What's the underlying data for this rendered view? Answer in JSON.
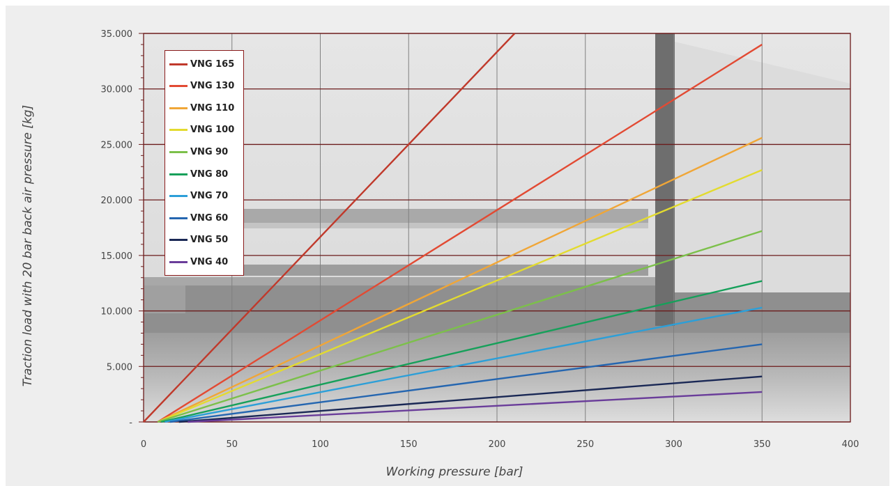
{
  "chart_data": {
    "type": "line",
    "title": "",
    "xlabel": "Working pressure [bar]",
    "ylabel": "Traction load with 20 bar back air pressure [kg]",
    "xlim": [
      0,
      400
    ],
    "ylim": [
      0,
      35000
    ],
    "x_ticks": [
      "0",
      "50",
      "100",
      "150",
      "200",
      "250",
      "300",
      "350",
      "400"
    ],
    "y_ticks": [
      "-",
      "5.000",
      "10.000",
      "15.000",
      "20.000",
      "25.000",
      "30.000",
      "35.000"
    ],
    "grid": true,
    "legend_position": "top-left",
    "background": "sailing catamaran photograph (greyscale)",
    "series": [
      {
        "name": "VNG 165",
        "color": "#c0392b",
        "x": [
          0,
          210
        ],
        "y": [
          0,
          35000
        ]
      },
      {
        "name": "VNG 130",
        "color": "#e24a33",
        "x": [
          8,
          350
        ],
        "y": [
          0,
          34000
        ]
      },
      {
        "name": "VNG 110",
        "color": "#f0a637",
        "x": [
          8,
          350
        ],
        "y": [
          0,
          25600
        ]
      },
      {
        "name": "VNG 100",
        "color": "#e3db2f",
        "x": [
          8,
          350
        ],
        "y": [
          0,
          22700
        ]
      },
      {
        "name": "VNG 90",
        "color": "#7cc04a",
        "x": [
          8,
          350
        ],
        "y": [
          0,
          17200
        ]
      },
      {
        "name": "VNG 80",
        "color": "#16a05a",
        "x": [
          10,
          350
        ],
        "y": [
          0,
          12700
        ]
      },
      {
        "name": "VNG 70",
        "color": "#2c9fd8",
        "x": [
          12,
          350
        ],
        "y": [
          0,
          10300
        ]
      },
      {
        "name": "VNG 60",
        "color": "#2566b0",
        "x": [
          15,
          350
        ],
        "y": [
          0,
          7000
        ]
      },
      {
        "name": "VNG 50",
        "color": "#1a2855",
        "x": [
          20,
          350
        ],
        "y": [
          0,
          4100
        ]
      },
      {
        "name": "VNG 40",
        "color": "#6a3d9a",
        "x": [
          25,
          350
        ],
        "y": [
          0,
          2700
        ]
      }
    ]
  }
}
